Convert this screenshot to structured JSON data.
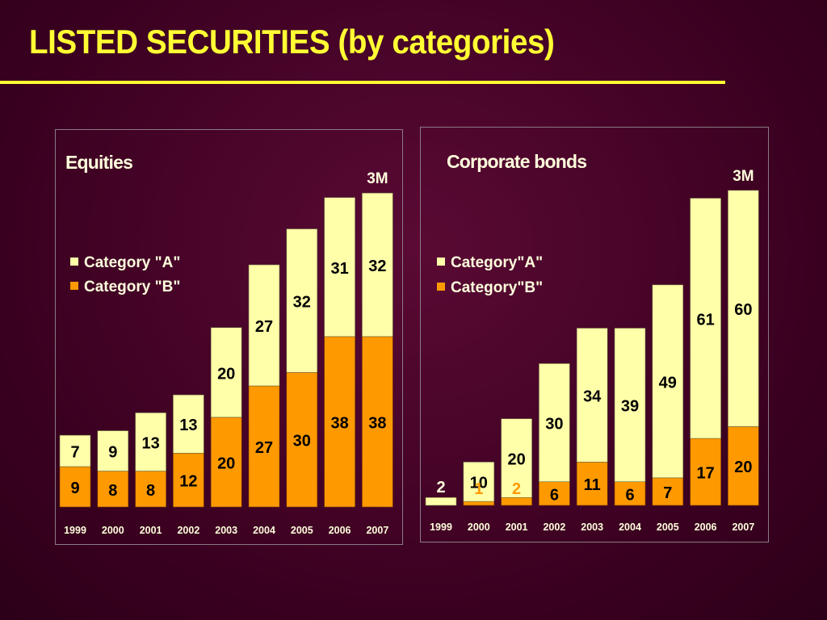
{
  "page": {
    "title": "LISTED SECURITIES (by categories)"
  },
  "colors": {
    "title": "#ffff33",
    "category_a": "#ffffaa",
    "category_b": "#ff9900",
    "panel_text": "#ffffdd",
    "tick_text": "#ffffdd",
    "value_text": "#000000",
    "value_text_highlight": "#ff9900",
    "annotation": "#ffffdd"
  },
  "chart_data": [
    {
      "type": "bar",
      "stacked": true,
      "title": "Equities",
      "categories": [
        "1999",
        "2000",
        "2001",
        "2002",
        "2003",
        "2004",
        "2005",
        "2006",
        "2007"
      ],
      "series": [
        {
          "name": "Category \"B\"",
          "values": [
            9,
            8,
            8,
            12,
            20,
            27,
            30,
            38,
            38
          ]
        },
        {
          "name": "Category \"A\"",
          "values": [
            7,
            9,
            13,
            13,
            20,
            27,
            32,
            31,
            32
          ]
        }
      ],
      "legend": [
        "Category \"A\"",
        "Category \"B\""
      ],
      "legend_position": "middle-left",
      "annotation": {
        "category": "2007",
        "text": "3M"
      },
      "ylim": [
        0,
        72
      ],
      "xlabel": "",
      "ylabel": ""
    },
    {
      "type": "bar",
      "stacked": true,
      "title": "Corporate bonds",
      "categories": [
        "1999",
        "2000",
        "2001",
        "2002",
        "2003",
        "2004",
        "2005",
        "2006",
        "2007"
      ],
      "series": [
        {
          "name": "Category\"B\"",
          "values": [
            0,
            1,
            2,
            6,
            11,
            6,
            7,
            17,
            20
          ]
        },
        {
          "name": "Category\"A\"",
          "values": [
            2,
            10,
            20,
            30,
            34,
            39,
            49,
            61,
            60
          ]
        }
      ],
      "legend": [
        "Category\"A\"",
        "Category\"B\""
      ],
      "legend_position": "middle-left",
      "annotation": {
        "category": "2007",
        "text": "3M"
      },
      "ylim": [
        0,
        82
      ],
      "xlabel": "",
      "ylabel": ""
    }
  ]
}
